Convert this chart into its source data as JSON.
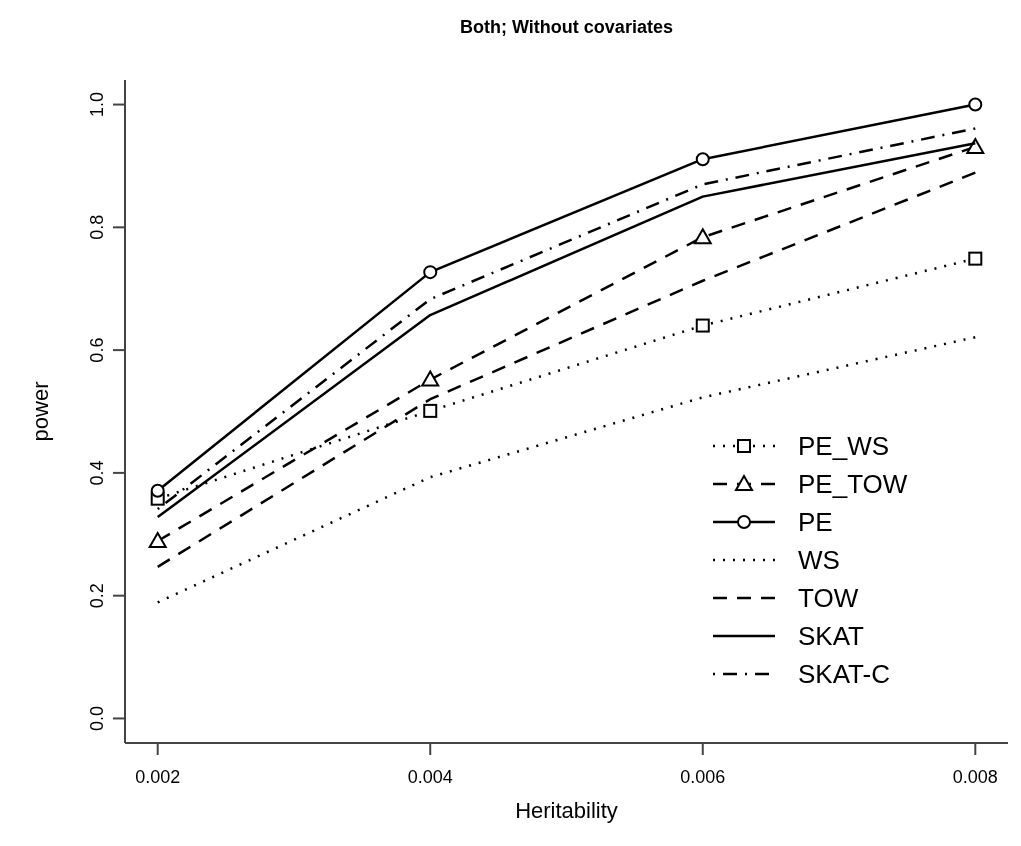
{
  "chart_data": {
    "type": "line",
    "title": "Both; Without covariates",
    "xlabel": "Heritability",
    "ylabel": "power",
    "x": [
      0.002,
      0.004,
      0.006,
      0.008
    ],
    "xlim": [
      0.00176,
      0.00824
    ],
    "xticks": [
      0.002,
      0.004,
      0.006,
      0.008
    ],
    "ylim": [
      -0.04,
      1.04
    ],
    "yticks": [
      {
        "value": 0,
        "label": "0.0"
      },
      0.2,
      0.4,
      0.6,
      0.8,
      {
        "value": 1,
        "label": "1.0"
      }
    ],
    "series": [
      {
        "name": "PE_WS",
        "color": "#000000",
        "marker": "square",
        "line_style": "dotted",
        "values": [
          0.358,
          0.501,
          0.64,
          0.749
        ]
      },
      {
        "name": "PE_TOW",
        "color": "#000000",
        "marker": "triangle",
        "line_style": "dashed",
        "values": [
          0.289,
          0.552,
          0.784,
          0.931
        ]
      },
      {
        "name": "PE",
        "color": "#000000",
        "marker": "circle",
        "line_style": "solid",
        "values": [
          0.371,
          0.727,
          0.911,
          1.0
        ]
      },
      {
        "name": "WS",
        "color": "#000000",
        "marker": "none",
        "line_style": "dotted",
        "values": [
          0.189,
          0.393,
          0.523,
          0.621
        ]
      },
      {
        "name": "TOW",
        "color": "#000000",
        "marker": "none",
        "line_style": "dashed",
        "values": [
          0.247,
          0.52,
          0.713,
          0.889
        ]
      },
      {
        "name": "SKAT",
        "color": "#000000",
        "marker": "none",
        "line_style": "solid",
        "values": [
          0.328,
          0.657,
          0.85,
          0.937
        ]
      },
      {
        "name": "SKAT-C",
        "color": "#000000",
        "marker": "none",
        "line_style": "dashdot",
        "values": [
          0.341,
          0.683,
          0.87,
          0.961
        ]
      }
    ],
    "legend": "bottom right",
    "grid": false
  }
}
